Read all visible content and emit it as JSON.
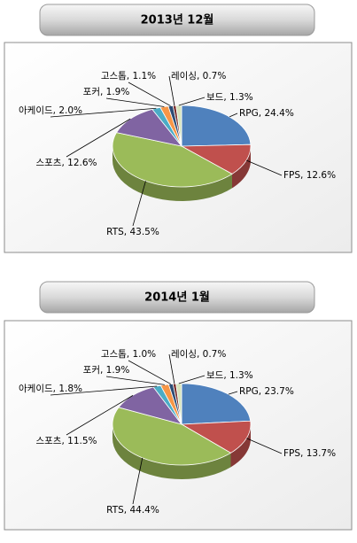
{
  "chart_data": [
    {
      "type": "pie3d",
      "title": "2013년 12월",
      "values": [
        24.4,
        12.6,
        43.5,
        12.6,
        2.0,
        1.9,
        1.1,
        0.7,
        1.3
      ],
      "value_labels": [
        "RPG, 24.4%",
        "FPS, 12.6%",
        "RTS, 43.5%",
        "스포츠, 12.6%",
        "아케이드, 2.0%",
        "포커, 1.9%",
        "고스톱, 1.1%",
        "레이싱, 0.7%",
        "보드, 1.3%"
      ],
      "colors": [
        "#4f81bd",
        "#c0504d",
        "#9bbb59",
        "#8064a2",
        "#4bacc6",
        "#f79646",
        "#2c4d75",
        "#772c2a",
        "#d7e4bd"
      ]
    },
    {
      "type": "pie3d",
      "title": "2014년 1월",
      "values": [
        23.7,
        13.7,
        44.4,
        11.5,
        1.8,
        1.9,
        1.0,
        0.7,
        1.3
      ],
      "value_labels": [
        "RPG, 23.7%",
        "FPS, 13.7%",
        "RTS, 44.4%",
        "스포츠, 11.5%",
        "아케이드, 1.8%",
        "포커, 1.9%",
        "고스톱, 1.0%",
        "레이싱, 0.7%",
        "보드, 1.3%"
      ],
      "colors": [
        "#4f81bd",
        "#c0504d",
        "#9bbb59",
        "#8064a2",
        "#4bacc6",
        "#f79646",
        "#2c4d75",
        "#772c2a",
        "#d7e4bd"
      ]
    }
  ]
}
